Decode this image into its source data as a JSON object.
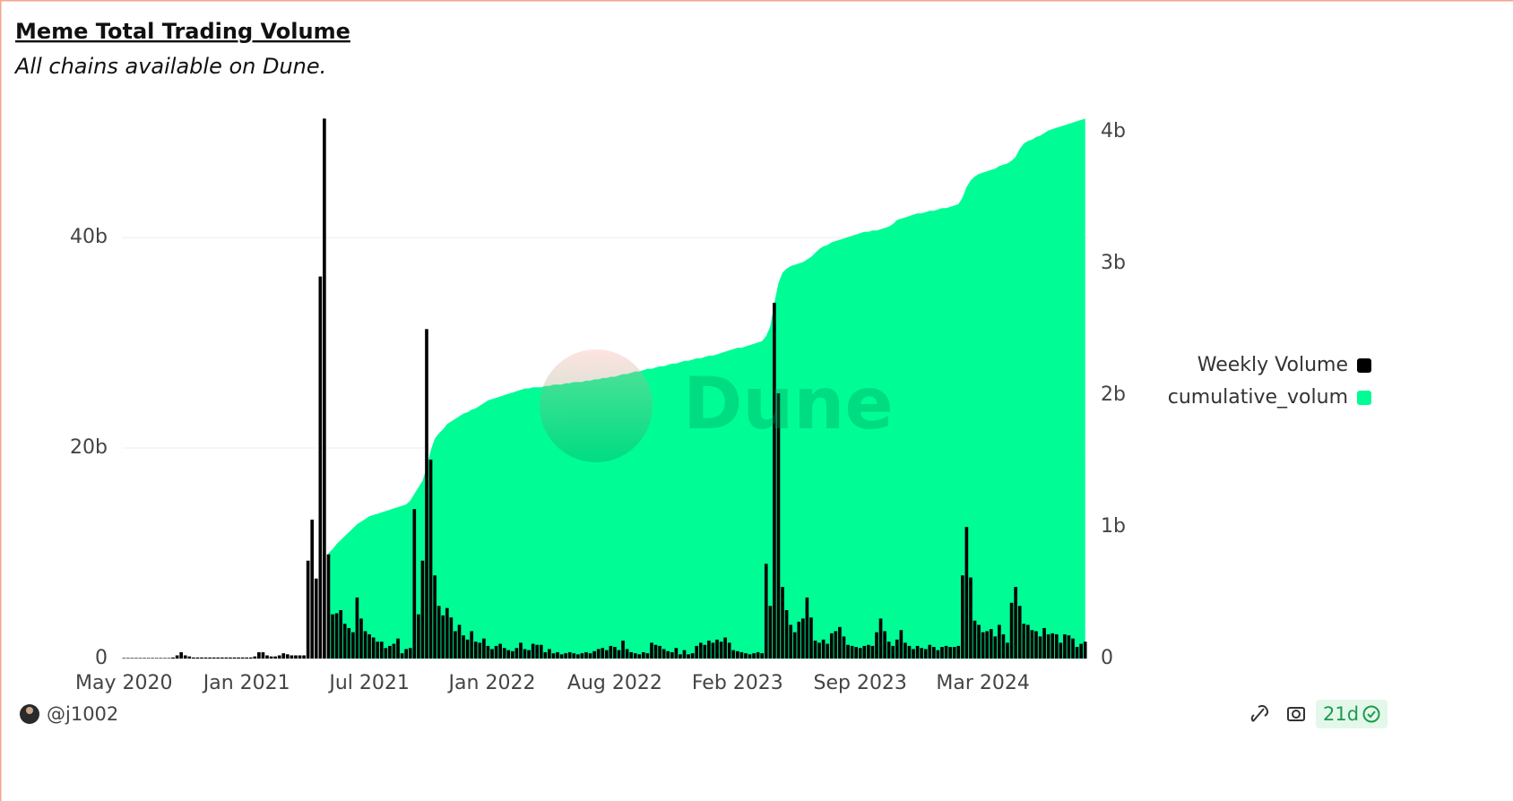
{
  "title": "Meme Total Trading Volume",
  "subtitle": "All chains available on Dune.",
  "watermark": "Dune",
  "author": "@j1002",
  "badge": "21d",
  "chart_data": {
    "type": "combo",
    "legend": "right",
    "grid": true,
    "categories": [
      "May 2020",
      null,
      null,
      null,
      null,
      null,
      null,
      null,
      null,
      null,
      null,
      null,
      null,
      null,
      null,
      null,
      null,
      null,
      null,
      null,
      null,
      null,
      null,
      null,
      null,
      null,
      null,
      null,
      null,
      null,
      "Jan 2021",
      null,
      null,
      null,
      null,
      null,
      null,
      null,
      null,
      null,
      null,
      null,
      null,
      null,
      null,
      null,
      null,
      null,
      null,
      null,
      null,
      null,
      null,
      null,
      null,
      null,
      null,
      null,
      null,
      null,
      "Jul 2021",
      null,
      null,
      null,
      null,
      null,
      null,
      null,
      null,
      null,
      null,
      null,
      null,
      null,
      null,
      null,
      null,
      null,
      null,
      null,
      null,
      null,
      null,
      null,
      null,
      null,
      null,
      null,
      null,
      null,
      "Jan 2022",
      null,
      null,
      null,
      null,
      null,
      null,
      null,
      null,
      null,
      null,
      null,
      null,
      null,
      null,
      null,
      null,
      null,
      null,
      null,
      null,
      null,
      null,
      null,
      null,
      null,
      null,
      null,
      null,
      null,
      "Aug 2022",
      null,
      null,
      null,
      null,
      null,
      null,
      null,
      null,
      null,
      null,
      null,
      null,
      null,
      null,
      null,
      null,
      null,
      null,
      null,
      null,
      null,
      null,
      null,
      null,
      null,
      null,
      null,
      null,
      null,
      "Feb 2023",
      null,
      null,
      null,
      null,
      null,
      null,
      null,
      null,
      null,
      null,
      null,
      null,
      null,
      null,
      null,
      null,
      null,
      null,
      null,
      null,
      null,
      null,
      null,
      null,
      null,
      null,
      null,
      null,
      null,
      "Sep 2023",
      null,
      null,
      null,
      null,
      null,
      null,
      null,
      null,
      null,
      null,
      null,
      null,
      null,
      null,
      null,
      null,
      null,
      null,
      null,
      null,
      null,
      null,
      null,
      null,
      null,
      null,
      null,
      null,
      null,
      "Mar 2024",
      null,
      null,
      null,
      null,
      null,
      null,
      null,
      null,
      null,
      null,
      null,
      null,
      null,
      null,
      null,
      null,
      null,
      null,
      null,
      null,
      null,
      null,
      null,
      null,
      null
    ],
    "ylim": [
      0,
      51.5
    ],
    "yticks": [
      0,
      {
        "value": 20,
        "label": "20b"
      },
      {
        "value": 40,
        "label": "40b"
      }
    ],
    "y2lim": [
      0,
      4.116
    ],
    "y2ticks": [
      0,
      {
        "value": 1,
        "label": "1b"
      },
      {
        "value": 2,
        "label": "2b"
      },
      {
        "value": 3,
        "label": "3b"
      },
      {
        "value": 4,
        "label": "4b"
      }
    ],
    "series": [
      {
        "name": "Weekly Volume",
        "type": "bar",
        "color": "#000000",
        "values": [
          0.05,
          0.05,
          0.05,
          0.05,
          0.05,
          0.05,
          0.05,
          0.05,
          0.05,
          0.05,
          0.05,
          0.05,
          0.1,
          0.3,
          0.6,
          0.3,
          0.2,
          0.1,
          0.1,
          0.1,
          0.1,
          0.1,
          0.1,
          0.1,
          0.1,
          0.1,
          0.1,
          0.1,
          0.1,
          0.1,
          0.1,
          0.1,
          0.2,
          0.6,
          0.6,
          0.3,
          0.2,
          0.2,
          0.3,
          0.5,
          0.4,
          0.3,
          0.3,
          0.3,
          0.3,
          9.3,
          13.2,
          7.6,
          36.3,
          51.3,
          9.9,
          4.2,
          4.3,
          4.6,
          3.3,
          2.9,
          2.5,
          5.8,
          3.8,
          2.6,
          2.3,
          2.0,
          1.6,
          1.6,
          1.0,
          1.2,
          1.4,
          1.9,
          0.5,
          0.9,
          1.0,
          14.2,
          4.2,
          9.3,
          31.3,
          18.9,
          7.9,
          5.0,
          4.1,
          4.8,
          3.9,
          2.6,
          3.2,
          2.2,
          1.8,
          2.6,
          1.6,
          1.5,
          1.9,
          1.2,
          0.9,
          1.2,
          1.4,
          1.0,
          0.8,
          0.7,
          1.0,
          1.5,
          0.9,
          0.8,
          1.4,
          1.3,
          1.3,
          0.6,
          0.9,
          0.5,
          0.6,
          0.4,
          0.5,
          0.6,
          0.5,
          0.4,
          0.5,
          0.6,
          0.5,
          0.7,
          0.9,
          1.0,
          0.8,
          1.2,
          1.1,
          0.8,
          1.7,
          0.9,
          0.6,
          0.5,
          0.4,
          0.6,
          0.5,
          1.5,
          1.3,
          1.2,
          0.9,
          0.7,
          0.6,
          1.0,
          0.4,
          0.8,
          0.4,
          0.5,
          1.2,
          1.5,
          1.3,
          1.7,
          1.5,
          1.8,
          1.6,
          2.0,
          1.5,
          0.8,
          0.7,
          0.6,
          0.5,
          0.4,
          0.5,
          0.6,
          0.5,
          9.0,
          5.0,
          33.8,
          25.2,
          6.8,
          4.6,
          3.2,
          2.5,
          3.5,
          3.8,
          5.8,
          3.9,
          1.7,
          1.5,
          1.8,
          1.4,
          2.4,
          2.6,
          3.0,
          2.1,
          1.3,
          1.2,
          1.1,
          1.0,
          1.2,
          1.3,
          1.2,
          2.5,
          3.8,
          2.6,
          1.6,
          1.2,
          1.8,
          2.7,
          1.5,
          1.2,
          0.9,
          1.2,
          1.0,
          0.9,
          1.3,
          1.1,
          0.8,
          1.1,
          1.2,
          1.1,
          1.1,
          1.2,
          7.9,
          12.5,
          7.7,
          3.6,
          3.2,
          2.5,
          2.6,
          2.8,
          2.1,
          3.2,
          2.3,
          1.5,
          5.3,
          6.8,
          5.0,
          3.3,
          3.2,
          2.7,
          2.6,
          2.1,
          2.9,
          2.3,
          2.4,
          2.3,
          1.5,
          2.3,
          2.2,
          1.9,
          1.1,
          1.4,
          1.6
        ]
      },
      {
        "name": "cumulative_volum",
        "type": "area",
        "axis": "y2",
        "color": "#00fd95",
        "values": [
          null,
          null,
          null,
          null,
          null,
          null,
          null,
          null,
          null,
          null,
          null,
          null,
          null,
          null,
          null,
          null,
          null,
          null,
          null,
          null,
          null,
          null,
          null,
          null,
          null,
          null,
          null,
          null,
          null,
          null,
          null,
          null,
          null,
          null,
          null,
          null,
          null,
          null,
          null,
          null,
          null,
          null,
          null,
          null,
          null,
          null,
          null,
          null,
          null,
          null,
          0.8,
          0.83,
          0.87,
          0.9,
          0.93,
          0.96,
          0.99,
          1.02,
          1.04,
          1.06,
          1.08,
          1.09,
          1.1,
          1.11,
          1.12,
          1.13,
          1.14,
          1.15,
          1.16,
          1.17,
          1.2,
          1.25,
          1.3,
          1.35,
          1.45,
          1.58,
          1.67,
          1.71,
          1.74,
          1.78,
          1.8,
          1.82,
          1.84,
          1.86,
          1.87,
          1.89,
          1.9,
          1.92,
          1.94,
          1.96,
          1.97,
          1.98,
          1.99,
          2.0,
          2.01,
          2.02,
          2.03,
          2.04,
          2.05,
          2.05,
          2.06,
          2.06,
          2.06,
          2.07,
          2.07,
          2.08,
          2.08,
          2.08,
          2.09,
          2.09,
          2.1,
          2.1,
          2.1,
          2.11,
          2.11,
          2.12,
          2.12,
          2.13,
          2.13,
          2.14,
          2.14,
          2.15,
          2.16,
          2.16,
          2.17,
          2.18,
          2.18,
          2.19,
          2.2,
          2.2,
          2.21,
          2.22,
          2.22,
          2.23,
          2.24,
          2.24,
          2.25,
          2.26,
          2.26,
          2.27,
          2.28,
          2.28,
          2.29,
          2.3,
          2.3,
          2.31,
          2.32,
          2.33,
          2.34,
          2.35,
          2.36,
          2.36,
          2.37,
          2.38,
          2.39,
          2.4,
          2.41,
          2.45,
          2.52,
          2.7,
          2.85,
          2.93,
          2.96,
          2.98,
          2.99,
          3.0,
          3.01,
          3.03,
          3.05,
          3.08,
          3.11,
          3.13,
          3.14,
          3.16,
          3.17,
          3.18,
          3.19,
          3.2,
          3.21,
          3.22,
          3.23,
          3.24,
          3.24,
          3.25,
          3.25,
          3.26,
          3.27,
          3.28,
          3.3,
          3.33,
          3.34,
          3.35,
          3.36,
          3.37,
          3.38,
          3.38,
          3.39,
          3.4,
          3.4,
          3.41,
          3.42,
          3.42,
          3.43,
          3.44,
          3.45,
          3.5,
          3.58,
          3.63,
          3.66,
          3.68,
          3.69,
          3.7,
          3.71,
          3.72,
          3.74,
          3.75,
          3.76,
          3.78,
          3.81,
          3.87,
          3.91,
          3.93,
          3.94,
          3.96,
          3.97,
          3.99,
          4.01,
          4.02,
          4.03,
          4.04,
          4.05,
          4.06,
          4.07,
          4.08,
          4.09,
          4.1
        ]
      }
    ]
  }
}
